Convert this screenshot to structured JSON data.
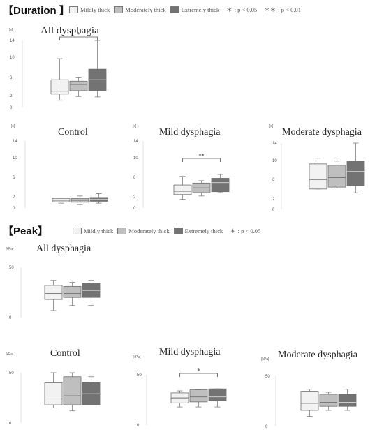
{
  "sections": {
    "duration": {
      "title": "【Duration 】",
      "legend": [
        {
          "label": "Mildly thick",
          "color": "#f2f2f2"
        },
        {
          "label": "Moderately thick",
          "color": "#bfbfbf"
        },
        {
          "label": "Extremely thick",
          "color": "#737373"
        }
      ],
      "sig_single_symbol": "＊",
      "sig_single_text": ": p < 0.05",
      "sig_double_symbol": "＊＊",
      "sig_double_text": ": p < 0.01"
    },
    "peak": {
      "title": "【Peak】",
      "legend": [
        {
          "label": "Mildly thick",
          "color": "#f2f2f2"
        },
        {
          "label": "Moderately thick",
          "color": "#bfbfbf"
        },
        {
          "label": "Extremely thick",
          "color": "#737373"
        }
      ],
      "sig_single_symbol": "＊",
      "sig_single_text": ": p < 0.05"
    }
  },
  "chart_data": [
    {
      "type": "boxplot",
      "section": "Duration",
      "title": "All dysphagia",
      "unit": "[s]",
      "yticks": [
        "14",
        "10",
        "6",
        "2",
        "0"
      ],
      "boxes": [
        {
          "name": "Mildly thick",
          "min": 1.5,
          "q1": 2.8,
          "median": 3.4,
          "q3": 5.8,
          "max": 10.2
        },
        {
          "name": "Moderately thick",
          "min": 2.3,
          "q1": 3.5,
          "median": 4.8,
          "q3": 5.5,
          "max": 6.2
        },
        {
          "name": "Extremely thick",
          "min": 2.2,
          "q1": 3.5,
          "median": 5.8,
          "q3": 8.0,
          "max": 14.0
        }
      ],
      "significance": [
        {
          "from": "Mildly thick",
          "to": "Extremely thick",
          "label": "*"
        }
      ]
    },
    {
      "type": "boxplot",
      "section": "Duration",
      "title": "Control",
      "unit": "[s]",
      "yticks": [
        "14",
        "10",
        "6",
        "2",
        "0"
      ],
      "boxes": [
        {
          "name": "Mildly thick",
          "min": 1.0,
          "q1": 1.3,
          "median": 1.6,
          "q3": 2.0,
          "max": 2.0
        },
        {
          "name": "Moderately thick",
          "min": 0.7,
          "q1": 1.2,
          "median": 1.6,
          "q3": 2.0,
          "max": 2.5
        },
        {
          "name": "Extremely thick",
          "min": 1.0,
          "q1": 1.4,
          "median": 1.8,
          "q3": 2.2,
          "max": 3.0
        }
      ],
      "significance": []
    },
    {
      "type": "boxplot",
      "section": "Duration",
      "title": "Mild dysphagia",
      "unit": "[s]",
      "yticks": [
        "14",
        "10",
        "6",
        "2",
        "0"
      ],
      "boxes": [
        {
          "name": "Mildly thick",
          "min": 1.8,
          "q1": 2.8,
          "median": 3.5,
          "q3": 4.8,
          "max": 6.6
        },
        {
          "name": "Moderately thick",
          "min": 2.5,
          "q1": 3.2,
          "median": 4.2,
          "q3": 5.2,
          "max": 5.7
        },
        {
          "name": "Extremely thick",
          "min": 3.2,
          "q1": 3.4,
          "median": 5.3,
          "q3": 6.2,
          "max": 7.0
        }
      ],
      "significance": [
        {
          "from": "Mildly thick",
          "to": "Extremely thick",
          "label": "**"
        }
      ]
    },
    {
      "type": "boxplot",
      "section": "Duration",
      "title": "Moderate dysphagia",
      "unit": "[s]",
      "yticks": [
        "14",
        "10",
        "6",
        "2",
        "0"
      ],
      "boxes": [
        {
          "name": "Mildly thick",
          "min": 4.3,
          "q1": 4.3,
          "median": 6.3,
          "q3": 9.6,
          "max": 10.8
        },
        {
          "name": "Moderately thick",
          "min": 4.5,
          "q1": 4.7,
          "median": 6.7,
          "q3": 9.3,
          "max": 10.2
        },
        {
          "name": "Extremely thick",
          "min": 3.5,
          "q1": 5.0,
          "median": 8.0,
          "q3": 10.2,
          "max": 14.0
        }
      ],
      "significance": []
    },
    {
      "type": "boxplot",
      "section": "Peak",
      "title": "All dysphagia",
      "unit": "[kPa]",
      "yticks": [
        "50",
        "0"
      ],
      "boxes": [
        {
          "name": "Mildly thick",
          "min": 7,
          "q1": 18,
          "median": 24,
          "q3": 32,
          "max": 37
        },
        {
          "name": "Moderately thick",
          "min": 12,
          "q1": 20,
          "median": 24,
          "q3": 31,
          "max": 35
        },
        {
          "name": "Extremely thick",
          "min": 12,
          "q1": 20,
          "median": 27,
          "q3": 34,
          "max": 37
        }
      ],
      "significance": []
    },
    {
      "type": "boxplot",
      "section": "Peak",
      "title": "Control",
      "unit": "[kPa]",
      "yticks": [
        "50",
        "0"
      ],
      "boxes": [
        {
          "name": "Mildly thick",
          "min": 15,
          "q1": 18,
          "median": 24,
          "q3": 40,
          "max": 50
        },
        {
          "name": "Moderately thick",
          "min": 12,
          "q1": 18,
          "median": 27,
          "q3": 46,
          "max": 50
        },
        {
          "name": "Extremely thick",
          "min": 18,
          "q1": 18,
          "median": 29,
          "q3": 40,
          "max": 46
        }
      ],
      "significance": []
    },
    {
      "type": "boxplot",
      "section": "Peak",
      "title": "Mild dysphagia",
      "unit": "[kPa]",
      "yticks": [
        "50",
        "0"
      ],
      "boxes": [
        {
          "name": "Mildly thick",
          "min": 18,
          "q1": 22,
          "median": 27,
          "q3": 32,
          "max": 34
        },
        {
          "name": "Moderately thick",
          "min": 18,
          "q1": 23,
          "median": 28,
          "q3": 35,
          "max": 35
        },
        {
          "name": "Extremely thick",
          "min": 18,
          "q1": 24,
          "median": 28,
          "q3": 36,
          "max": 36
        }
      ],
      "significance": [
        {
          "from": "Mildly thick",
          "to": "Extremely thick",
          "label": "*"
        }
      ]
    },
    {
      "type": "boxplot",
      "section": "Peak",
      "title": "Moderate dysphagia",
      "unit": "[kPa]",
      "yticks": [
        "50",
        "0"
      ],
      "boxes": [
        {
          "name": "Mildly thick",
          "min": 10,
          "q1": 16,
          "median": 23,
          "q3": 35,
          "max": 37
        },
        {
          "name": "Moderately thick",
          "min": 16,
          "q1": 20,
          "median": 24,
          "q3": 32,
          "max": 34
        },
        {
          "name": "Extremely thick",
          "min": 16,
          "q1": 20,
          "median": 24,
          "q3": 32,
          "max": 37
        }
      ],
      "significance": []
    }
  ]
}
